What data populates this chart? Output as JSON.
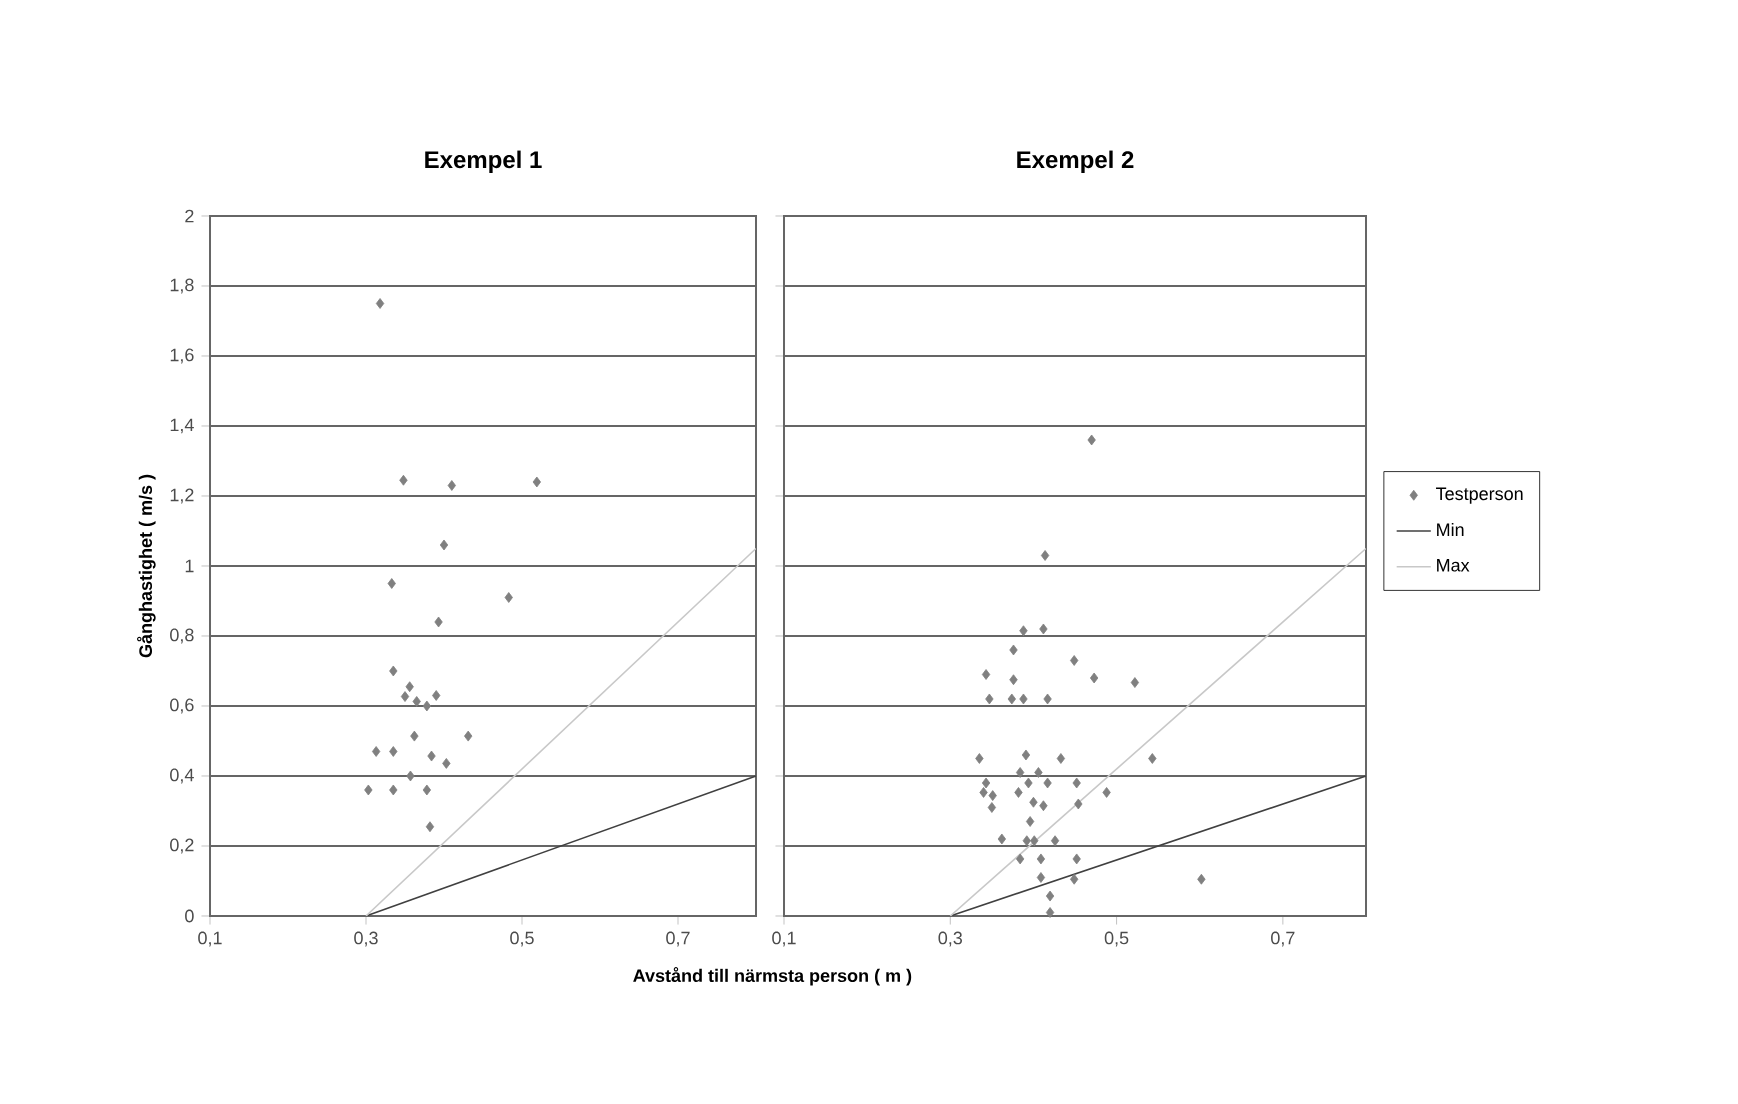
{
  "chart_data": [
    {
      "type": "scatter",
      "title": "Exempel 1",
      "xlabel": "Avstånd till närmsta person ( m )",
      "ylabel": "Gånghastighet ( m/s )",
      "xlim": [
        0.1,
        0.8
      ],
      "ylim": [
        0,
        2
      ],
      "xticks": [
        {
          "value": 0.1,
          "label": "0,1"
        },
        {
          "value": 0.3,
          "label": "0,3"
        },
        {
          "value": 0.5,
          "label": "0,5"
        },
        {
          "value": 0.7,
          "label": "0,7"
        }
      ],
      "yticks": [
        0,
        {
          "value": 0.2,
          "label": "0,2"
        },
        {
          "value": 0.4,
          "label": "0,4"
        },
        {
          "value": 0.6,
          "label": "0,6"
        },
        {
          "value": 0.8,
          "label": "0,8"
        },
        1,
        {
          "value": 1.2,
          "label": "1,2"
        },
        {
          "value": 1.4,
          "label": "1,4"
        },
        {
          "value": 1.6,
          "label": "1,6"
        },
        {
          "value": 1.8,
          "label": "1,8"
        },
        2
      ],
      "grid": "y",
      "series": [
        {
          "marker": "diamond",
          "color": "#808080",
          "x": [
            0.318,
            0.348,
            0.41,
            0.519,
            0.4,
            0.333,
            0.483,
            0.393,
            0.335,
            0.356,
            0.35,
            0.365,
            0.378,
            0.39,
            0.362,
            0.431,
            0.313,
            0.335,
            0.384,
            0.403,
            0.357,
            0.303,
            0.335,
            0.378,
            0.382
          ],
          "values": [
            1.75,
            1.245,
            1.23,
            1.24,
            1.06,
            0.95,
            0.91,
            0.84,
            0.7,
            0.655,
            0.627,
            0.613,
            0.6,
            0.63,
            0.514,
            0.514,
            0.47,
            0.47,
            0.457,
            0.436,
            0.4,
            0.36,
            0.36,
            0.36,
            0.255
          ]
        },
        {
          "type": "line",
          "marker": "none",
          "color": "#404040",
          "x": [
            0.3,
            0.8
          ],
          "values": [
            0,
            0.4
          ]
        },
        {
          "type": "line",
          "marker": "none",
          "color": "#c8c8c8",
          "x": [
            0.3,
            0.8
          ],
          "values": [
            0,
            1.05
          ]
        }
      ]
    },
    {
      "type": "scatter",
      "title": "Exempel 2",
      "xlim": [
        0.1,
        0.8
      ],
      "ylim": [
        0,
        2
      ],
      "xticks": [
        {
          "value": 0.1,
          "label": "0,1"
        },
        {
          "value": 0.3,
          "label": "0,3"
        },
        {
          "value": 0.5,
          "label": "0,5"
        },
        {
          "value": 0.7,
          "label": "0,7"
        }
      ],
      "yticks": [
        {
          "value": 0,
          "label": null
        },
        {
          "value": 0.2,
          "label": null
        },
        {
          "value": 0.4,
          "label": null
        },
        {
          "value": 0.6,
          "label": null
        },
        {
          "value": 0.8,
          "label": null
        },
        {
          "value": 1,
          "label": null
        },
        {
          "value": 1.2,
          "label": null
        },
        {
          "value": 1.4,
          "label": null
        },
        {
          "value": 1.6,
          "label": null
        },
        {
          "value": 1.8,
          "label": null
        },
        {
          "value": 2,
          "label": null
        }
      ],
      "tick_labels": "x",
      "grid": "y",
      "legend": "right",
      "series": [
        {
          "name": "Testperson",
          "marker": "diamond",
          "color": "#808080",
          "x": [
            0.47,
            0.414,
            0.388,
            0.412,
            0.376,
            0.449,
            0.343,
            0.376,
            0.473,
            0.522,
            0.347,
            0.374,
            0.388,
            0.417,
            0.335,
            0.391,
            0.433,
            0.543,
            0.384,
            0.406,
            0.343,
            0.394,
            0.417,
            0.452,
            0.34,
            0.351,
            0.382,
            0.488,
            0.35,
            0.4,
            0.412,
            0.454,
            0.396,
            0.362,
            0.392,
            0.401,
            0.426,
            0.384,
            0.409,
            0.452,
            0.409,
            0.449,
            0.602,
            0.42,
            0.42
          ],
          "values": [
            1.36,
            1.03,
            0.815,
            0.82,
            0.76,
            0.73,
            0.69,
            0.675,
            0.68,
            0.667,
            0.62,
            0.62,
            0.62,
            0.62,
            0.45,
            0.46,
            0.45,
            0.45,
            0.41,
            0.41,
            0.38,
            0.38,
            0.38,
            0.38,
            0.353,
            0.344,
            0.353,
            0.353,
            0.31,
            0.325,
            0.315,
            0.32,
            0.27,
            0.22,
            0.215,
            0.215,
            0.215,
            0.163,
            0.163,
            0.163,
            0.11,
            0.105,
            0.105,
            0.057,
            0.01
          ]
        },
        {
          "name": "Min",
          "type": "line",
          "marker": "none",
          "color": "#404040",
          "x": [
            0.3,
            0.8
          ],
          "values": [
            0,
            0.4
          ]
        },
        {
          "name": "Max",
          "type": "line",
          "marker": "none",
          "color": "#c8c8c8",
          "x": [
            0.3,
            0.8
          ],
          "values": [
            0,
            1.05
          ]
        }
      ]
    }
  ]
}
